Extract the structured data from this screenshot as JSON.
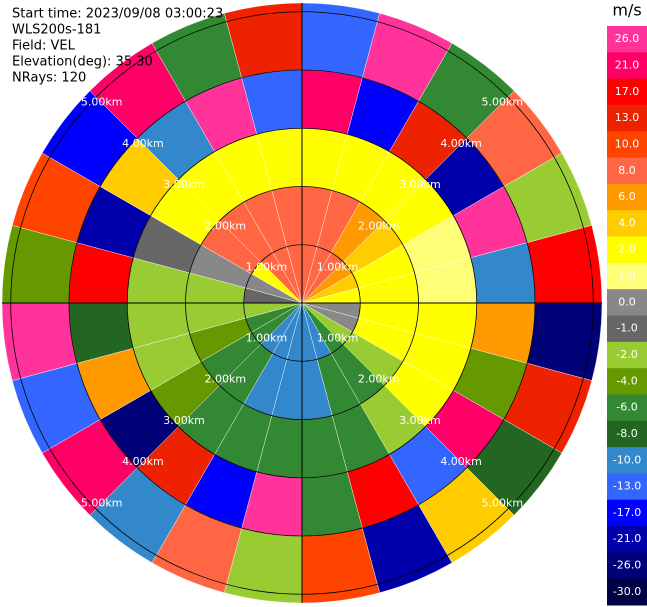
{
  "chart_data": {
    "type": "ppi",
    "info": [
      "Start time: 2023/09/08 03:00:23",
      "WLS200s-181",
      "Field: VEL",
      "Elevation(deg): 35.30",
      "NRays: 120"
    ],
    "colorbar_title": "m/s",
    "colorbar_ticks": [
      {
        "value": 26,
        "label": "26.0"
      },
      {
        "value": 21,
        "label": "21.0"
      },
      {
        "value": 17,
        "label": "17.0"
      },
      {
        "value": 13,
        "label": "13.0"
      },
      {
        "value": 10,
        "label": "10.0"
      },
      {
        "value": 8,
        "label": "8.0"
      },
      {
        "value": 6,
        "label": "6.0"
      },
      {
        "value": 4,
        "label": "4.0"
      },
      {
        "value": 2,
        "label": "2.0"
      },
      {
        "value": 1,
        "label": "1.0"
      },
      {
        "value": 0,
        "label": "0.0"
      },
      {
        "value": -1,
        "label": "-1.0"
      },
      {
        "value": -2,
        "label": "-2.0"
      },
      {
        "value": -4,
        "label": "-4.0"
      },
      {
        "value": -6,
        "label": "-6.0"
      },
      {
        "value": -8,
        "label": "-8.0"
      },
      {
        "value": -10,
        "label": "-10.0"
      },
      {
        "value": -13,
        "label": "-13.0"
      },
      {
        "value": -17,
        "label": "-17.0"
      },
      {
        "value": -21,
        "label": "-21.0"
      },
      {
        "value": -26,
        "label": "-26.0"
      },
      {
        "value": -30,
        "label": "-30.0"
      }
    ],
    "colors": [
      "#ff3399",
      "#ff0066",
      "#ff0000",
      "#ee2200",
      "#ff4400",
      "#ff6644",
      "#ff9900",
      "#ffcc00",
      "#ffff00",
      "#ffff77",
      "#888888",
      "#666666",
      "#99cc33",
      "#669900",
      "#338833",
      "#226622",
      "#3388cc",
      "#3366ff",
      "#0000ff",
      "#0000aa",
      "#000077",
      "#000044"
    ],
    "rings": [
      {
        "value": 1,
        "label": "1.00km"
      },
      {
        "value": 2,
        "label": "2.00km"
      },
      {
        "value": 3,
        "label": "3.00km"
      },
      {
        "value": 4,
        "label": "4.00km"
      },
      {
        "value": 5,
        "label": "5.00km"
      }
    ],
    "rlim": [
      0,
      5.15
    ],
    "azimuths": [
      0,
      15,
      30,
      45,
      60,
      75,
      90,
      105,
      120,
      135,
      150,
      165,
      180,
      195,
      210,
      225,
      240,
      255,
      270,
      285,
      300,
      315,
      330,
      345
    ],
    "range_edges": [
      0,
      1,
      2,
      3,
      4,
      5.15
    ],
    "values": [
      [
        8,
        8,
        2,
        21,
        -13
      ],
      [
        8,
        8,
        2,
        -17,
        26
      ],
      [
        8,
        6,
        2,
        13,
        -6
      ],
      [
        6,
        4,
        2,
        -21,
        8
      ],
      [
        4,
        2,
        1,
        26,
        -2
      ],
      [
        2,
        2,
        1,
        -10,
        17
      ],
      [
        0.5,
        2,
        2,
        6,
        -26
      ],
      [
        0.5,
        2,
        2,
        -4,
        13
      ],
      [
        -1.5,
        -1.5,
        2,
        21,
        -8
      ],
      [
        -5,
        -5,
        -1.5,
        -13,
        4
      ],
      [
        -9,
        -5,
        -5,
        17,
        -21
      ],
      [
        -9,
        -9,
        -5,
        -6,
        10
      ],
      [
        -9,
        -9,
        -5,
        26,
        -2
      ],
      [
        -9,
        -9,
        -5,
        -17,
        8
      ],
      [
        -9,
        -5,
        -5,
        13,
        -10
      ],
      [
        -5,
        -5,
        -3,
        -26,
        21
      ],
      [
        -5,
        -3,
        -1.5,
        6,
        -13
      ],
      [
        -1.5,
        -1.5,
        -1.5,
        -8,
        26
      ],
      [
        -0.5,
        -1.5,
        -1.5,
        17,
        -4
      ],
      [
        0.5,
        0.5,
        -0.5,
        -21,
        10
      ],
      [
        2,
        8,
        2,
        4,
        -17
      ],
      [
        8,
        8,
        2,
        -10,
        21
      ],
      [
        8,
        8,
        2,
        26,
        -6
      ],
      [
        8,
        8,
        2,
        -13,
        13
      ]
    ]
  }
}
